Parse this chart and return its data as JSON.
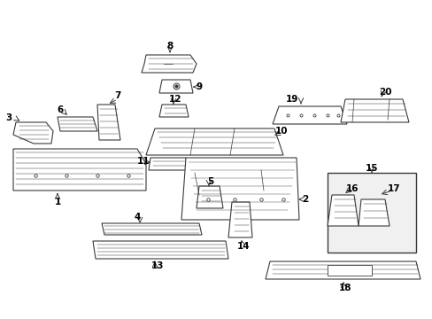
{
  "bg_color": "#ffffff",
  "line_color": "#3a3a3a",
  "label_color": "#000000",
  "fig_width": 4.89,
  "fig_height": 3.6,
  "dpi": 100
}
